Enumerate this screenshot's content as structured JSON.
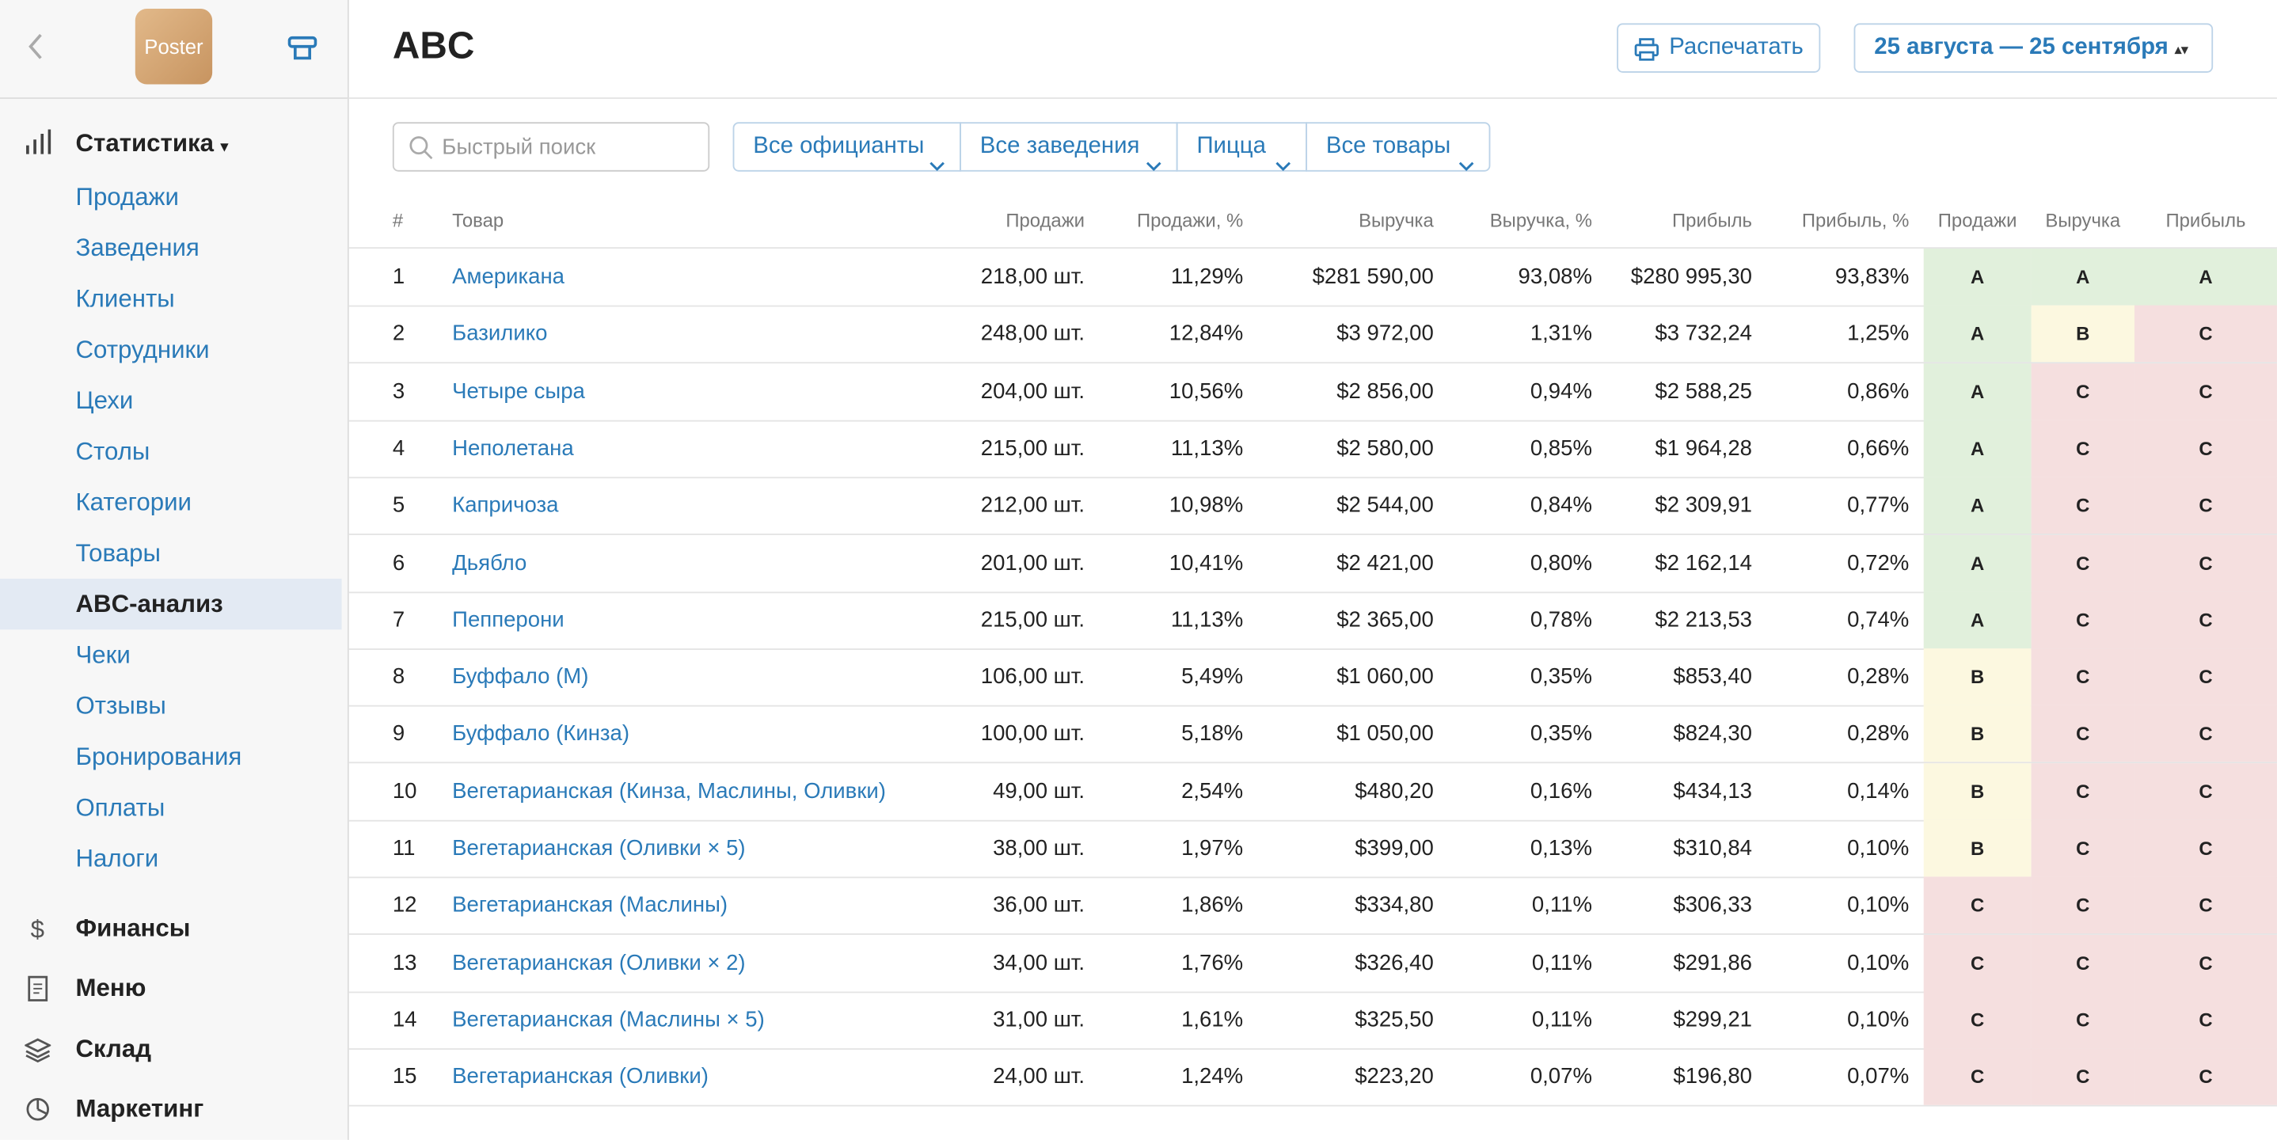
{
  "sidebar": {
    "logo": "Poster",
    "main": {
      "label": "Статистика",
      "items": [
        "Продажи",
        "Заведения",
        "Клиенты",
        "Сотрудники",
        "Цехи",
        "Столы",
        "Категории",
        "Товары",
        "ABC-анализ",
        "Чеки",
        "Отзывы",
        "Бронирования",
        "Оплаты",
        "Налоги"
      ]
    },
    "sections": [
      "Финансы",
      "Меню",
      "Склад",
      "Маркетинг"
    ]
  },
  "header": {
    "title": "ABC",
    "print": "Распечатать",
    "date_range": "25 августа — 25 сентября"
  },
  "filters": {
    "search_placeholder": "Быстрый поиск",
    "dropdowns": [
      "Все официанты",
      "Все заведения",
      "Пицца",
      "Все товары"
    ]
  },
  "table": {
    "columns": [
      "#",
      "Товар",
      "Продажи",
      "Продажи, %",
      "Выручка",
      "Выручка, %",
      "Прибыль",
      "Прибыль, %",
      "Продажи",
      "Выручка",
      "Прибыль"
    ],
    "rows": [
      [
        "1",
        "Американа",
        "218,00 шт.",
        "11,29%",
        "$281 590,00",
        "93,08%",
        "$280 995,30",
        "93,83%",
        "A",
        "A",
        "A"
      ],
      [
        "2",
        "Базилико",
        "248,00 шт.",
        "12,84%",
        "$3 972,00",
        "1,31%",
        "$3 732,24",
        "1,25%",
        "A",
        "B",
        "C"
      ],
      [
        "3",
        "Четыре сыра",
        "204,00 шт.",
        "10,56%",
        "$2 856,00",
        "0,94%",
        "$2 588,25",
        "0,86%",
        "A",
        "C",
        "C"
      ],
      [
        "4",
        "Неполетана",
        "215,00 шт.",
        "11,13%",
        "$2 580,00",
        "0,85%",
        "$1 964,28",
        "0,66%",
        "A",
        "C",
        "C"
      ],
      [
        "5",
        "Капричоза",
        "212,00 шт.",
        "10,98%",
        "$2 544,00",
        "0,84%",
        "$2 309,91",
        "0,77%",
        "A",
        "C",
        "C"
      ],
      [
        "6",
        "Дьябло",
        "201,00 шт.",
        "10,41%",
        "$2 421,00",
        "0,80%",
        "$2 162,14",
        "0,72%",
        "A",
        "C",
        "C"
      ],
      [
        "7",
        "Пепперони",
        "215,00 шт.",
        "11,13%",
        "$2 365,00",
        "0,78%",
        "$2 213,53",
        "0,74%",
        "A",
        "C",
        "C"
      ],
      [
        "8",
        "Буффало (М)",
        "106,00 шт.",
        "5,49%",
        "$1 060,00",
        "0,35%",
        "$853,40",
        "0,28%",
        "B",
        "C",
        "C"
      ],
      [
        "9",
        "Буффало (Кинза)",
        "100,00 шт.",
        "5,18%",
        "$1 050,00",
        "0,35%",
        "$824,30",
        "0,28%",
        "B",
        "C",
        "C"
      ],
      [
        "10",
        "Вегетарианская (Кинза, Маслины, Оливки)",
        "49,00 шт.",
        "2,54%",
        "$480,20",
        "0,16%",
        "$434,13",
        "0,14%",
        "B",
        "C",
        "C"
      ],
      [
        "11",
        "Вегетарианская (Оливки × 5)",
        "38,00 шт.",
        "1,97%",
        "$399,00",
        "0,13%",
        "$310,84",
        "0,10%",
        "B",
        "C",
        "C"
      ],
      [
        "12",
        "Вегетарианская (Маслины)",
        "36,00 шт.",
        "1,86%",
        "$334,80",
        "0,11%",
        "$306,33",
        "0,10%",
        "C",
        "C",
        "C"
      ],
      [
        "13",
        "Вегетарианская (Оливки × 2)",
        "34,00 шт.",
        "1,76%",
        "$326,40",
        "0,11%",
        "$291,86",
        "0,10%",
        "C",
        "C",
        "C"
      ],
      [
        "14",
        "Вегетарианская (Маслины × 5)",
        "31,00 шт.",
        "1,61%",
        "$325,50",
        "0,11%",
        "$299,21",
        "0,10%",
        "C",
        "C",
        "C"
      ],
      [
        "15",
        "Вегетарианская (Оливки)",
        "24,00 шт.",
        "1,24%",
        "$223,20",
        "0,07%",
        "$196,80",
        "0,07%",
        "C",
        "C",
        "C"
      ]
    ]
  }
}
